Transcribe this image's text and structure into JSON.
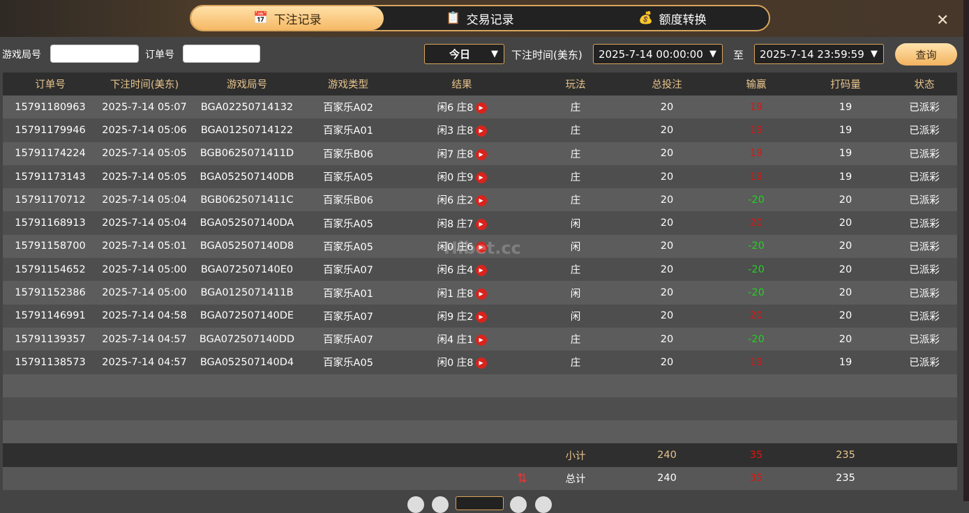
{
  "tabs": [
    {
      "label": "下注记录",
      "icon": "calendar-icon",
      "active": true
    },
    {
      "label": "交易记录",
      "icon": "clipboard-icon",
      "active": false
    },
    {
      "label": "额度转换",
      "icon": "coins-icon",
      "active": false
    }
  ],
  "close_label": "✕",
  "filter": {
    "round_label": "游戏局号",
    "round_value": "",
    "order_label": "订单号",
    "order_value": "",
    "period": "今日",
    "time_label": "下注时间(美东)",
    "start": "2025-7-14 00:00:00",
    "to_label": "至",
    "end": "2025-7-14 23:59:59",
    "query": "查询"
  },
  "columns": [
    "订单号",
    "下注时间(美东)",
    "游戏局号",
    "游戏类型",
    "结果",
    "玩法",
    "总投注",
    "输赢",
    "打码量",
    "状态"
  ],
  "rows": [
    [
      "15791180963",
      "2025-7-14 05:07",
      "BGA02250714132",
      "百家乐A02",
      "闲6 庄8",
      "庄",
      "20",
      "19",
      "19",
      "已派彩"
    ],
    [
      "15791179946",
      "2025-7-14 05:06",
      "BGA01250714122",
      "百家乐A01",
      "闲3 庄8",
      "庄",
      "20",
      "19",
      "19",
      "已派彩"
    ],
    [
      "15791174224",
      "2025-7-14 05:05",
      "BGB0625071411D",
      "百家乐B06",
      "闲7 庄8",
      "庄",
      "20",
      "19",
      "19",
      "已派彩"
    ],
    [
      "15791173143",
      "2025-7-14 05:05",
      "BGA052507140DB",
      "百家乐A05",
      "闲0 庄9",
      "庄",
      "20",
      "19",
      "19",
      "已派彩"
    ],
    [
      "15791170712",
      "2025-7-14 05:04",
      "BGB0625071411C",
      "百家乐B06",
      "闲6 庄2",
      "庄",
      "20",
      "-20",
      "20",
      "已派彩"
    ],
    [
      "15791168913",
      "2025-7-14 05:04",
      "BGA052507140DA",
      "百家乐A05",
      "闲8 庄7",
      "闲",
      "20",
      "20",
      "20",
      "已派彩"
    ],
    [
      "15791158700",
      "2025-7-14 05:01",
      "BGA052507140D8",
      "百家乐A05",
      "闲0 庄6",
      "闲",
      "20",
      "-20",
      "20",
      "已派彩"
    ],
    [
      "15791154652",
      "2025-7-14 05:00",
      "BGA072507140E0",
      "百家乐A07",
      "闲6 庄4",
      "庄",
      "20",
      "-20",
      "20",
      "已派彩"
    ],
    [
      "15791152386",
      "2025-7-14 05:00",
      "BGA0125071411B",
      "百家乐A01",
      "闲1 庄8",
      "闲",
      "20",
      "-20",
      "20",
      "已派彩"
    ],
    [
      "15791146991",
      "2025-7-14 04:58",
      "BGA072507140DE",
      "百家乐A07",
      "闲9 庄2",
      "闲",
      "20",
      "20",
      "20",
      "已派彩"
    ],
    [
      "15791139357",
      "2025-7-14 04:57",
      "BGA072507140DD",
      "百家乐A07",
      "闲4 庄1",
      "庄",
      "20",
      "-20",
      "20",
      "已派彩"
    ],
    [
      "15791138573",
      "2025-7-14 04:57",
      "BGA052507140D4",
      "百家乐A05",
      "闲0 庄8",
      "庄",
      "20",
      "19",
      "19",
      "已派彩"
    ]
  ],
  "subtotal": {
    "label": "小计",
    "bet": "240",
    "winloss": "35",
    "turnover": "235"
  },
  "total": {
    "label": "总计",
    "bet": "240",
    "winloss": "35",
    "turnover": "235"
  },
  "watermark": "Hibet.cc",
  "colors": {
    "accent": "#f5b965",
    "win": "#e0140f",
    "loss": "#22d022"
  }
}
